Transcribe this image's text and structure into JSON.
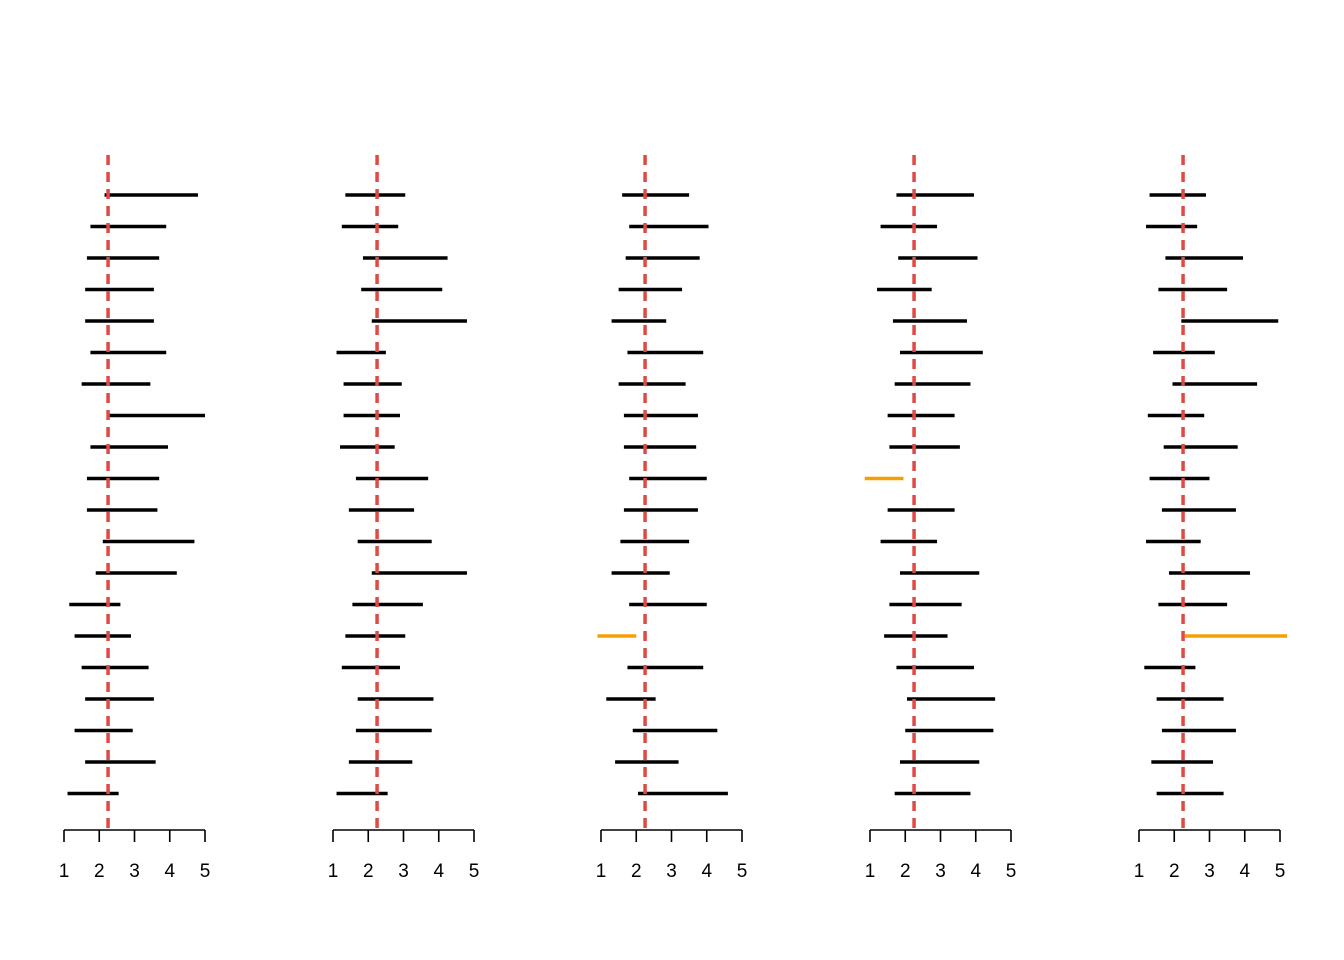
{
  "colors": {
    "interval": "#000000",
    "miss": "#F5A000",
    "reference": "#DF4A44",
    "axis": "#000000"
  },
  "chart_data": [
    {
      "type": "interval",
      "reference_value": 2.25,
      "xlim": [
        1,
        5
      ],
      "ticks": [
        "1",
        "2",
        "3",
        "4",
        "5"
      ],
      "intervals": [
        {
          "lo": 2.15,
          "hi": 4.8,
          "covers": true
        },
        {
          "lo": 1.75,
          "hi": 3.9,
          "covers": true
        },
        {
          "lo": 1.65,
          "hi": 3.7,
          "covers": true
        },
        {
          "lo": 1.6,
          "hi": 3.55,
          "covers": true
        },
        {
          "lo": 1.6,
          "hi": 3.55,
          "covers": true
        },
        {
          "lo": 1.75,
          "hi": 3.9,
          "covers": true
        },
        {
          "lo": 1.5,
          "hi": 3.45,
          "covers": true
        },
        {
          "lo": 2.25,
          "hi": 5.0,
          "covers": true
        },
        {
          "lo": 1.75,
          "hi": 3.95,
          "covers": true
        },
        {
          "lo": 1.65,
          "hi": 3.7,
          "covers": true
        },
        {
          "lo": 1.65,
          "hi": 3.65,
          "covers": true
        },
        {
          "lo": 2.1,
          "hi": 4.7,
          "covers": true
        },
        {
          "lo": 1.9,
          "hi": 4.2,
          "covers": true
        },
        {
          "lo": 1.15,
          "hi": 2.6,
          "covers": true
        },
        {
          "lo": 1.3,
          "hi": 2.9,
          "covers": true
        },
        {
          "lo": 1.5,
          "hi": 3.4,
          "covers": true
        },
        {
          "lo": 1.6,
          "hi": 3.55,
          "covers": true
        },
        {
          "lo": 1.3,
          "hi": 2.95,
          "covers": true
        },
        {
          "lo": 1.6,
          "hi": 3.6,
          "covers": true
        },
        {
          "lo": 1.1,
          "hi": 2.55,
          "covers": true
        }
      ]
    },
    {
      "type": "interval",
      "reference_value": 2.25,
      "xlim": [
        1,
        5
      ],
      "ticks": [
        "1",
        "2",
        "3",
        "4",
        "5"
      ],
      "intervals": [
        {
          "lo": 1.35,
          "hi": 3.05,
          "covers": true
        },
        {
          "lo": 1.25,
          "hi": 2.85,
          "covers": true
        },
        {
          "lo": 1.85,
          "hi": 4.25,
          "covers": true
        },
        {
          "lo": 1.8,
          "hi": 4.1,
          "covers": true
        },
        {
          "lo": 2.1,
          "hi": 4.8,
          "covers": true
        },
        {
          "lo": 1.1,
          "hi": 2.5,
          "covers": true
        },
        {
          "lo": 1.3,
          "hi": 2.95,
          "covers": true
        },
        {
          "lo": 1.3,
          "hi": 2.9,
          "covers": true
        },
        {
          "lo": 1.2,
          "hi": 2.75,
          "covers": true
        },
        {
          "lo": 1.65,
          "hi": 3.7,
          "covers": true
        },
        {
          "lo": 1.45,
          "hi": 3.3,
          "covers": true
        },
        {
          "lo": 1.7,
          "hi": 3.8,
          "covers": true
        },
        {
          "lo": 2.1,
          "hi": 4.8,
          "covers": true
        },
        {
          "lo": 1.55,
          "hi": 3.55,
          "covers": true
        },
        {
          "lo": 1.35,
          "hi": 3.05,
          "covers": true
        },
        {
          "lo": 1.25,
          "hi": 2.9,
          "covers": true
        },
        {
          "lo": 1.7,
          "hi": 3.85,
          "covers": true
        },
        {
          "lo": 1.65,
          "hi": 3.8,
          "covers": true
        },
        {
          "lo": 1.45,
          "hi": 3.25,
          "covers": true
        },
        {
          "lo": 1.1,
          "hi": 2.55,
          "covers": true
        }
      ]
    },
    {
      "type": "interval",
      "reference_value": 2.25,
      "xlim": [
        1,
        5
      ],
      "ticks": [
        "1",
        "2",
        "3",
        "4",
        "5"
      ],
      "intervals": [
        {
          "lo": 1.6,
          "hi": 3.5,
          "covers": true
        },
        {
          "lo": 1.8,
          "hi": 4.05,
          "covers": true
        },
        {
          "lo": 1.7,
          "hi": 3.8,
          "covers": true
        },
        {
          "lo": 1.5,
          "hi": 3.3,
          "covers": true
        },
        {
          "lo": 1.3,
          "hi": 2.85,
          "covers": true
        },
        {
          "lo": 1.75,
          "hi": 3.9,
          "covers": true
        },
        {
          "lo": 1.5,
          "hi": 3.4,
          "covers": true
        },
        {
          "lo": 1.65,
          "hi": 3.75,
          "covers": true
        },
        {
          "lo": 1.65,
          "hi": 3.7,
          "covers": true
        },
        {
          "lo": 1.8,
          "hi": 4.0,
          "covers": true
        },
        {
          "lo": 1.65,
          "hi": 3.75,
          "covers": true
        },
        {
          "lo": 1.55,
          "hi": 3.5,
          "covers": true
        },
        {
          "lo": 1.3,
          "hi": 2.95,
          "covers": true
        },
        {
          "lo": 1.8,
          "hi": 4.0,
          "covers": true
        },
        {
          "lo": 0.9,
          "hi": 2.0,
          "covers": false
        },
        {
          "lo": 1.75,
          "hi": 3.9,
          "covers": true
        },
        {
          "lo": 1.15,
          "hi": 2.55,
          "covers": true
        },
        {
          "lo": 1.9,
          "hi": 4.3,
          "covers": true
        },
        {
          "lo": 1.4,
          "hi": 3.2,
          "covers": true
        },
        {
          "lo": 2.05,
          "hi": 4.6,
          "covers": true
        }
      ]
    },
    {
      "type": "interval",
      "reference_value": 2.25,
      "xlim": [
        1,
        5
      ],
      "ticks": [
        "1",
        "2",
        "3",
        "4",
        "5"
      ],
      "intervals": [
        {
          "lo": 1.75,
          "hi": 3.95,
          "covers": true
        },
        {
          "lo": 1.3,
          "hi": 2.9,
          "covers": true
        },
        {
          "lo": 1.8,
          "hi": 4.05,
          "covers": true
        },
        {
          "lo": 1.2,
          "hi": 2.75,
          "covers": true
        },
        {
          "lo": 1.65,
          "hi": 3.75,
          "covers": true
        },
        {
          "lo": 1.85,
          "hi": 4.2,
          "covers": true
        },
        {
          "lo": 1.7,
          "hi": 3.85,
          "covers": true
        },
        {
          "lo": 1.5,
          "hi": 3.4,
          "covers": true
        },
        {
          "lo": 1.55,
          "hi": 3.55,
          "covers": true
        },
        {
          "lo": 0.85,
          "hi": 1.95,
          "covers": false
        },
        {
          "lo": 1.5,
          "hi": 3.4,
          "covers": true
        },
        {
          "lo": 1.3,
          "hi": 2.9,
          "covers": true
        },
        {
          "lo": 1.85,
          "hi": 4.1,
          "covers": true
        },
        {
          "lo": 1.55,
          "hi": 3.6,
          "covers": true
        },
        {
          "lo": 1.4,
          "hi": 3.2,
          "covers": true
        },
        {
          "lo": 1.75,
          "hi": 3.95,
          "covers": true
        },
        {
          "lo": 2.05,
          "hi": 4.55,
          "covers": true
        },
        {
          "lo": 2.0,
          "hi": 4.5,
          "covers": true
        },
        {
          "lo": 1.85,
          "hi": 4.1,
          "covers": true
        },
        {
          "lo": 1.7,
          "hi": 3.85,
          "covers": true
        }
      ]
    },
    {
      "type": "interval",
      "reference_value": 2.25,
      "xlim": [
        1,
        5
      ],
      "ticks": [
        "1",
        "2",
        "3",
        "4",
        "5"
      ],
      "intervals": [
        {
          "lo": 1.3,
          "hi": 2.9,
          "covers": true
        },
        {
          "lo": 1.2,
          "hi": 2.65,
          "covers": true
        },
        {
          "lo": 1.75,
          "hi": 3.95,
          "covers": true
        },
        {
          "lo": 1.55,
          "hi": 3.5,
          "covers": true
        },
        {
          "lo": 2.2,
          "hi": 4.95,
          "covers": true
        },
        {
          "lo": 1.4,
          "hi": 3.15,
          "covers": true
        },
        {
          "lo": 1.95,
          "hi": 4.35,
          "covers": true
        },
        {
          "lo": 1.25,
          "hi": 2.85,
          "covers": true
        },
        {
          "lo": 1.7,
          "hi": 3.8,
          "covers": true
        },
        {
          "lo": 1.3,
          "hi": 3.0,
          "covers": true
        },
        {
          "lo": 1.65,
          "hi": 3.75,
          "covers": true
        },
        {
          "lo": 1.2,
          "hi": 2.75,
          "covers": true
        },
        {
          "lo": 1.85,
          "hi": 4.15,
          "covers": true
        },
        {
          "lo": 1.55,
          "hi": 3.5,
          "covers": true
        },
        {
          "lo": 2.3,
          "hi": 5.2,
          "covers": false
        },
        {
          "lo": 1.15,
          "hi": 2.6,
          "covers": true
        },
        {
          "lo": 1.5,
          "hi": 3.4,
          "covers": true
        },
        {
          "lo": 1.65,
          "hi": 3.75,
          "covers": true
        },
        {
          "lo": 1.35,
          "hi": 3.1,
          "covers": true
        },
        {
          "lo": 1.5,
          "hi": 3.4,
          "covers": true
        }
      ]
    }
  ]
}
